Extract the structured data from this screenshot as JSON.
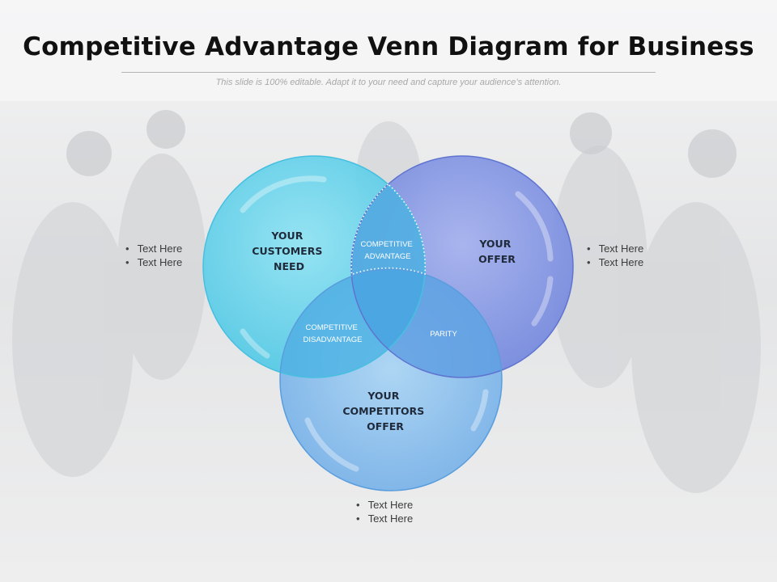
{
  "title": "Competitive Advantage Venn Diagram for Business",
  "subtitle": "This slide is 100% editable. Adapt it to your need and capture your audience’s attention.",
  "circles": {
    "customers": {
      "lines": [
        "YOUR",
        "CUSTOMERS",
        "NEED"
      ],
      "color": "#58cde8"
    },
    "offer": {
      "lines": [
        "YOUR",
        "OFFER"
      ],
      "color": "#7b8fe0"
    },
    "competitors": {
      "lines": [
        "YOUR",
        "COMPETITORS",
        "OFFER"
      ],
      "color": "#6aaee8"
    }
  },
  "overlaps": {
    "advantage": [
      "COMPETITIVE",
      "ADVANTAGE"
    ],
    "disadvantage": [
      "COMPETITIVE",
      "DISADVANTAGE"
    ],
    "parity": [
      "PARITY"
    ]
  },
  "bullets": {
    "left": [
      "Text Here",
      "Text Here"
    ],
    "right": [
      "Text Here",
      "Text Here"
    ],
    "bottom": [
      "Text Here",
      "Text Here"
    ]
  }
}
